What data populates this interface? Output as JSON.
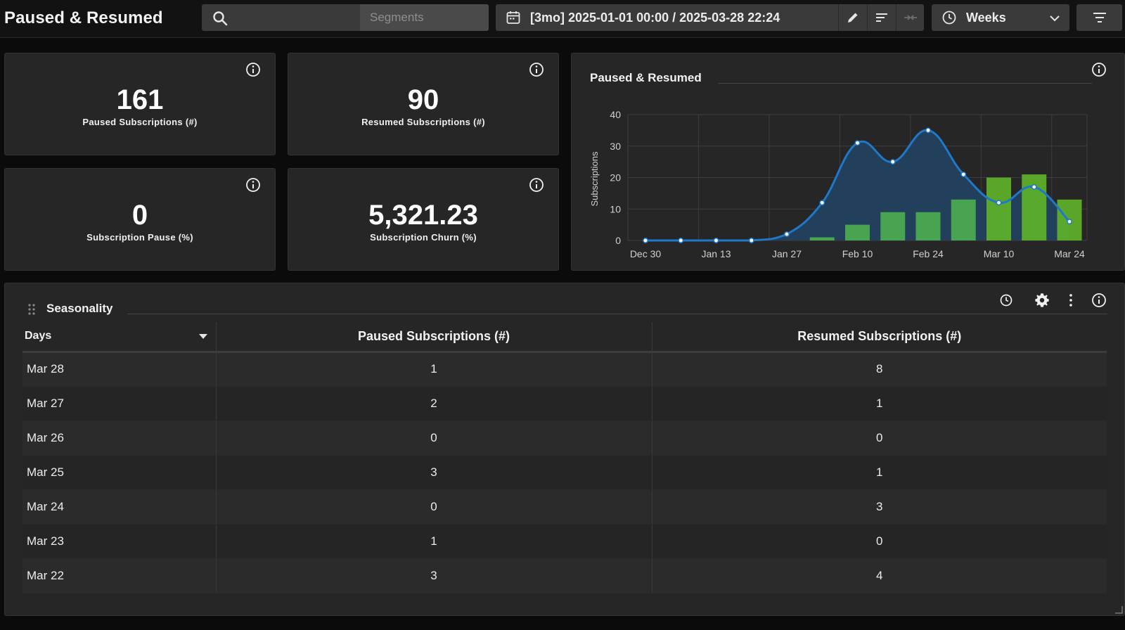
{
  "header": {
    "title": "Paused & Resumed",
    "search_placeholder": "Segments",
    "date_range": "[3mo] 2025-01-01 00:00 / 2025-03-28 22:24",
    "granularity": "Weeks"
  },
  "kpis": [
    {
      "value": "161",
      "label": "Paused Subscriptions (#)"
    },
    {
      "value": "90",
      "label": "Resumed Subscriptions (#)"
    },
    {
      "value": "0",
      "label": "Subscription Pause (%)"
    },
    {
      "value": "5,321.23",
      "label": "Subscription Churn (%)"
    }
  ],
  "chart_panel": {
    "title": "Paused & Resumed"
  },
  "chart_data": {
    "type": "line",
    "title": "Paused & Resumed",
    "ylabel": "Subscriptions",
    "xlabel": "",
    "ylim": [
      0,
      40
    ],
    "yticks": [
      0,
      10,
      20,
      30,
      40
    ],
    "x_tick_labels": [
      "Dec 30",
      "Jan 13",
      "Jan 27",
      "Feb 10",
      "Feb 24",
      "Mar 10",
      "Mar 24"
    ],
    "grid": true,
    "series": [
      {
        "kind": "area-line",
        "color": "#1f78c8",
        "values": [
          0,
          0,
          0,
          0,
          2,
          12,
          31,
          25,
          35,
          21,
          12,
          17,
          6
        ]
      },
      {
        "kind": "bar",
        "color": "#4caf50",
        "values": [
          0,
          0,
          0,
          0,
          0,
          1,
          5,
          9,
          9,
          13,
          20,
          21,
          13
        ]
      }
    ],
    "colors": {
      "line": "#1f78c8",
      "area": "#22405e",
      "bar": "#4caf50",
      "bar_highlight": "#5fb52a"
    }
  },
  "seasonality": {
    "title": "Seasonality",
    "columns": [
      "Days",
      "Paused Subscriptions (#)",
      "Resumed Subscriptions (#)"
    ],
    "rows": [
      {
        "day": "Mar 28",
        "paused": "1",
        "resumed": "8"
      },
      {
        "day": "Mar 27",
        "paused": "2",
        "resumed": "1"
      },
      {
        "day": "Mar 26",
        "paused": "0",
        "resumed": "0"
      },
      {
        "day": "Mar 25",
        "paused": "3",
        "resumed": "1"
      },
      {
        "day": "Mar 24",
        "paused": "0",
        "resumed": "3"
      },
      {
        "day": "Mar 23",
        "paused": "1",
        "resumed": "0"
      },
      {
        "day": "Mar 22",
        "paused": "3",
        "resumed": "4"
      }
    ]
  }
}
